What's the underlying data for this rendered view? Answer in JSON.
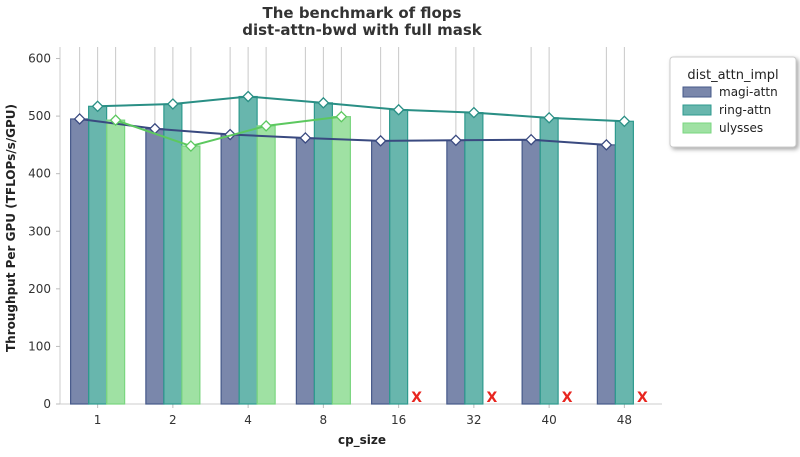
{
  "chart_data": {
    "type": "bar",
    "title": "The benchmark of flops",
    "subtitle": "dist-attn-bwd with full mask",
    "xlabel": "cp_size",
    "ylabel": "Throughput Per GPU (TFLOPs/s/GPU)",
    "ylim": [
      0,
      620
    ],
    "yticks": [
      0,
      100,
      200,
      300,
      400,
      500,
      600
    ],
    "categories": [
      "1",
      "2",
      "4",
      "8",
      "16",
      "32",
      "40",
      "48"
    ],
    "legend_title": "dist_attn_impl",
    "legend_position": "top-right",
    "missing_marker": "X",
    "series": [
      {
        "name": "magi-attn",
        "color": "#46598a",
        "line_color": "#3a4a80",
        "values": [
          495,
          478,
          468,
          462,
          457,
          458,
          459,
          450
        ]
      },
      {
        "name": "ring-attn",
        "color": "#2e9a8e",
        "line_color": "#2a8f85",
        "values": [
          517,
          521,
          534,
          523,
          511,
          506,
          497,
          491
        ]
      },
      {
        "name": "ulysses",
        "color": "#7ad67f",
        "line_color": "#5cc85f",
        "values": [
          493,
          448,
          483,
          499,
          null,
          null,
          null,
          null
        ]
      }
    ]
  }
}
